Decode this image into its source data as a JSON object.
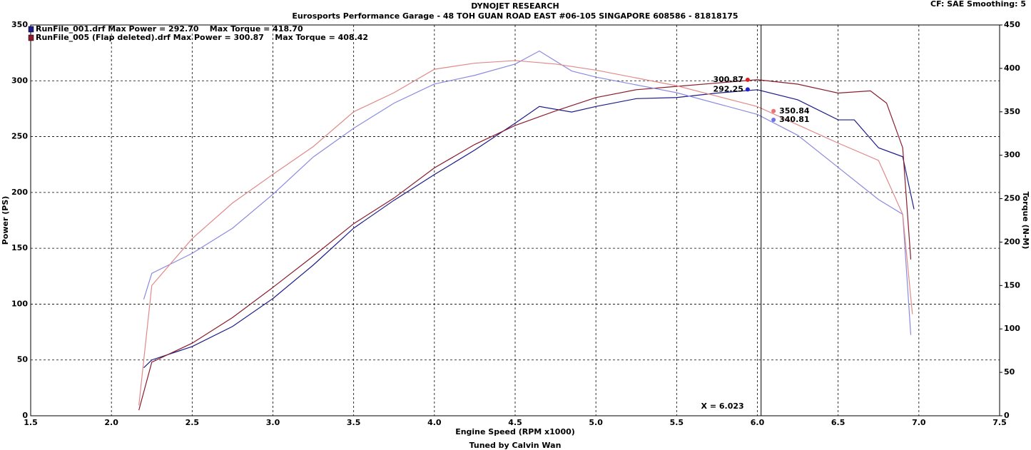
{
  "chart_data": {
    "type": "line",
    "title": "DYNOJET RESEARCH",
    "subtitle": "Eurosports Performance Garage - 48 TOH GUAN ROAD EAST #06-105 SINGAPORE 608586 - 81818175",
    "corner_note": "CF: SAE  Smoothing: 5",
    "footer": "Tuned by Calvin Wan",
    "x_label": "Engine Speed (RPM x1000)",
    "y_label": "Power (PS)",
    "y2_label": "Torque (N-M)",
    "xlim": [
      1.5,
      7.5
    ],
    "xticks": [
      {
        "value": 1.5,
        "label": "1.5"
      },
      {
        "value": 2,
        "label": "2.0"
      },
      {
        "value": 2.5,
        "label": "2.5"
      },
      {
        "value": 3,
        "label": "3.0"
      },
      {
        "value": 3.5,
        "label": "3.5"
      },
      {
        "value": 4,
        "label": "4.0"
      },
      {
        "value": 4.5,
        "label": "4.5"
      },
      {
        "value": 5,
        "label": "5.0"
      },
      {
        "value": 5.5,
        "label": "5.5"
      },
      {
        "value": 6,
        "label": "6.0"
      },
      {
        "value": 6.5,
        "label": "6.5"
      },
      {
        "value": 7,
        "label": "7.0"
      },
      {
        "value": 7.5,
        "label": "7.5"
      }
    ],
    "ylim": [
      0,
      350
    ],
    "yticks": [
      0,
      50,
      100,
      150,
      200,
      250,
      300,
      350
    ],
    "y2lim": [
      0,
      450
    ],
    "y2ticks": [
      0,
      50,
      100,
      150,
      200,
      250,
      300,
      350,
      400,
      450
    ],
    "grid": true,
    "legend": "upper left",
    "series": [
      {
        "name": "RunFile_001.drf Max Power = 292.70    Max Torque = 418.70",
        "color": "#1c1c8a",
        "x": [
          2.2,
          2.25,
          2.5,
          2.75,
          3.0,
          3.25,
          3.5,
          3.75,
          4.0,
          4.25,
          4.5,
          4.65,
          4.85,
          5.0,
          5.25,
          5.5,
          5.75,
          6.0,
          6.25,
          6.5,
          6.6,
          6.75,
          6.9,
          6.97
        ],
        "values": [
          43,
          50,
          62,
          80,
          105,
          135,
          168,
          193,
          216,
          238,
          262,
          277,
          272,
          277,
          284,
          285,
          289,
          292,
          283,
          265,
          265,
          240,
          232,
          185
        ]
      },
      {
        "name": "RunFile_005 (Flap deleted).drf Max Power = 300.87    Max Torque = 408.42",
        "color": "#8a1c2c",
        "x": [
          2.17,
          2.25,
          2.5,
          2.75,
          3.0,
          3.25,
          3.5,
          3.75,
          4.0,
          4.25,
          4.5,
          4.75,
          5.0,
          5.25,
          5.5,
          5.75,
          6.0,
          6.25,
          6.5,
          6.7,
          6.8,
          6.9,
          6.95
        ],
        "values": [
          5,
          48,
          65,
          88,
          115,
          143,
          172,
          195,
          222,
          243,
          260,
          273,
          285,
          292,
          295,
          298,
          301,
          297,
          289,
          291,
          280,
          240,
          140
        ]
      },
      {
        "color": "#8a8ae0",
        "axis": "y2",
        "x": [
          2.2,
          2.25,
          2.5,
          2.75,
          3.0,
          3.25,
          3.5,
          3.75,
          4.0,
          4.25,
          4.5,
          4.65,
          4.85,
          5.0,
          5.5,
          6.0,
          6.25,
          6.5,
          6.75,
          6.9,
          6.95
        ],
        "values": [
          134,
          164,
          187,
          216,
          255,
          298,
          331,
          360,
          382,
          392,
          405,
          420,
          397,
          390,
          372,
          347,
          323,
          286,
          249,
          232,
          93
        ]
      },
      {
        "color": "#e08a8a",
        "axis": "y2",
        "x": [
          2.17,
          2.25,
          2.5,
          2.75,
          3.0,
          3.25,
          3.5,
          3.75,
          4.0,
          4.25,
          4.5,
          4.75,
          5.0,
          5.5,
          6.0,
          6.25,
          6.5,
          6.75,
          6.9,
          6.96
        ],
        "values": [
          12,
          150,
          204,
          245,
          278,
          310,
          350,
          372,
          399,
          406,
          409,
          405,
          398,
          380,
          356,
          335,
          314,
          294,
          232,
          117
        ]
      }
    ],
    "cursor": {
      "x": 6.023,
      "label": "X = 6.023"
    },
    "markers": [
      {
        "x": 5.94,
        "y": 300.87,
        "color": "#e02020"
      },
      {
        "x": 5.94,
        "y": 292.25,
        "color": "#2020d0"
      },
      {
        "x": 6.1,
        "y": 350.84,
        "color": "#f07070",
        "axis": "y2"
      },
      {
        "x": 6.1,
        "y": 340.81,
        "color": "#7070f0",
        "axis": "y2"
      }
    ]
  }
}
